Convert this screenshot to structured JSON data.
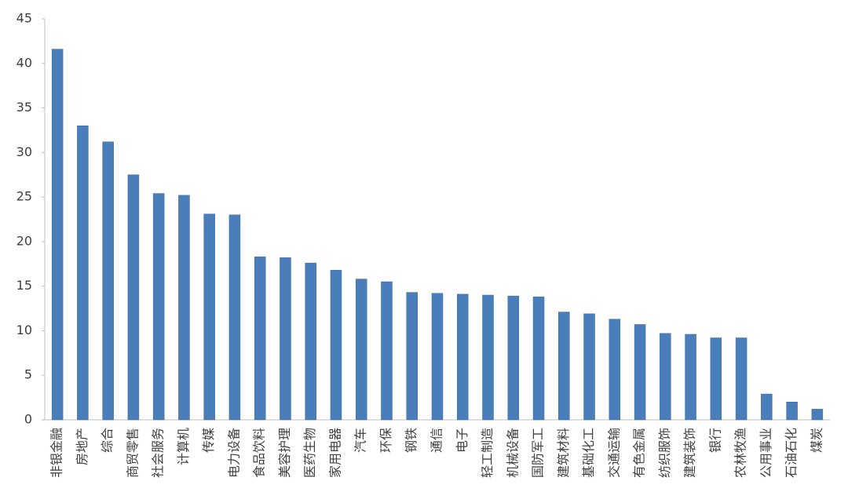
{
  "chart_data": {
    "type": "bar",
    "categories": [
      "非银金融",
      "房地产",
      "综合",
      "商贸零售",
      "社会服务",
      "计算机",
      "传媒",
      "电力设备",
      "食品饮料",
      "美容护理",
      "医药生物",
      "家用电器",
      "汽车",
      "环保",
      "钢铁",
      "通信",
      "电子",
      "轻工制造",
      "机械设备",
      "国防军工",
      "建筑材料",
      "基础化工",
      "交通运输",
      "有色金属",
      "纺织服饰",
      "建筑装饰",
      "银行",
      "农林牧渔",
      "公用事业",
      "石油石化",
      "煤炭"
    ],
    "values": [
      41.6,
      33.0,
      31.2,
      27.5,
      25.4,
      25.2,
      23.1,
      23.0,
      18.3,
      18.2,
      17.6,
      16.8,
      15.8,
      15.5,
      14.3,
      14.2,
      14.1,
      14.0,
      13.9,
      13.8,
      12.1,
      11.9,
      11.3,
      10.7,
      9.7,
      9.6,
      9.2,
      9.2,
      2.9,
      2.0,
      1.2
    ],
    "color": "#4a7ebb",
    "ylim": [
      0,
      45
    ],
    "yticks": [
      0,
      5,
      10,
      15,
      20,
      25,
      30,
      35,
      40,
      45
    ],
    "grid": false
  }
}
